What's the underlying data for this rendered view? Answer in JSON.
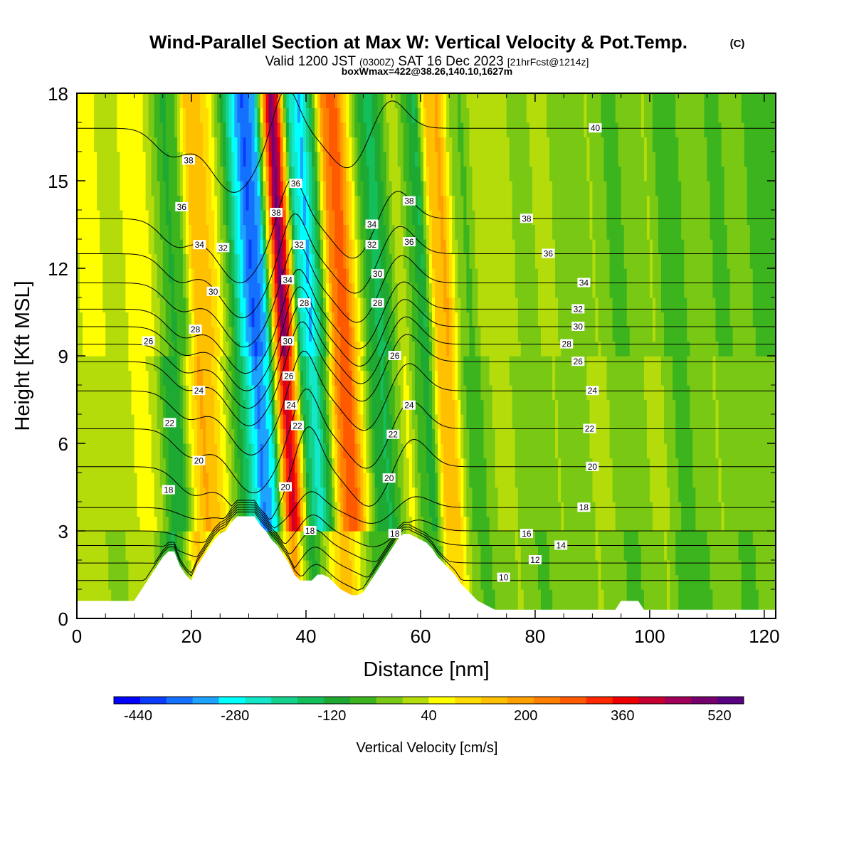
{
  "chart_data": {
    "type": "heatmap",
    "title": "Wind-Parallel Section at Max W: Vertical Velocity & Pot.Temp.",
    "title_mark": "(C)",
    "subtitle": {
      "main": "Valid 1200 JST",
      "utc": "(0300Z)",
      "date": "SAT 16 Dec 2023",
      "forecast": "[21hrFcst@1214z]"
    },
    "box_info": "boxWmax=422@38.26,140.10,1627m",
    "xlabel": "Distance [nm]",
    "ylabel": "Height [Kft MSL]",
    "xlim": [
      0,
      122
    ],
    "ylim": [
      0,
      18
    ],
    "x_ticks": [
      "0",
      "20",
      "40",
      "60",
      "80",
      "100",
      "120"
    ],
    "y_ticks": [
      "0",
      "3",
      "6",
      "9",
      "12",
      "15",
      "18"
    ],
    "colorbar": {
      "label": "Vertical Velocity [cm/s]",
      "tick_labels": [
        "-440",
        "-280",
        "-120",
        "40",
        "200",
        "360",
        "520"
      ],
      "tick_values": [
        -440,
        -280,
        -120,
        40,
        200,
        360,
        520
      ],
      "range": [
        -480,
        560
      ],
      "colors": [
        "#0000ff",
        "#0a3cff",
        "#1470ff",
        "#1ea2ff",
        "#00ffff",
        "#14e6c8",
        "#14d28c",
        "#14be5a",
        "#1eaa32",
        "#3cb41e",
        "#78c814",
        "#b4dc0a",
        "#ffff00",
        "#ffdc00",
        "#ffc000",
        "#ffa000",
        "#ff8000",
        "#ff5a00",
        "#ff2800",
        "#f00000",
        "#c80032",
        "#a0005a",
        "#78006e",
        "#5a0082"
      ]
    },
    "velocity_cross_section": {
      "x_nm": [
        0,
        2,
        4,
        6,
        8,
        10,
        12,
        14,
        16,
        18,
        20,
        22,
        24,
        26,
        28,
        30,
        32,
        34,
        36,
        37,
        38,
        40,
        42,
        44,
        46,
        48,
        50,
        52,
        54,
        56,
        58,
        60,
        62,
        64,
        66,
        68,
        70,
        72,
        74,
        76,
        78,
        80,
        82,
        84,
        86,
        88,
        90,
        92,
        94,
        96,
        98,
        100,
        102,
        104,
        106,
        108,
        110,
        112,
        114,
        116,
        118,
        120,
        122
      ],
      "w_cm_s": {
        "0-3kft": [
          0,
          10,
          0,
          -20,
          0,
          20,
          10,
          -60,
          -140,
          -20,
          150,
          60,
          40,
          -40,
          -60,
          -20,
          -120,
          -60,
          140,
          220,
          60,
          -120,
          -20,
          100,
          160,
          60,
          -40,
          -80,
          -60,
          -20,
          20,
          -60,
          -80,
          120,
          100,
          -20,
          -60,
          -40,
          -20,
          0,
          -20,
          -60,
          -40,
          -20,
          -40,
          -20,
          0,
          -20,
          -40,
          -60,
          -40,
          -20,
          0,
          -60,
          -80,
          -60,
          -40,
          -20,
          -40,
          -60,
          -40,
          -20,
          -20
        ],
        "3-9kft": [
          0,
          20,
          40,
          20,
          0,
          40,
          60,
          20,
          -100,
          -120,
          60,
          180,
          140,
          40,
          -80,
          -200,
          -360,
          -280,
          240,
          420,
          300,
          -140,
          -260,
          -60,
          240,
          300,
          80,
          -100,
          -140,
          -40,
          60,
          -80,
          -100,
          160,
          140,
          -40,
          -80,
          -20,
          20,
          0,
          -20,
          -40,
          -20,
          0,
          -40,
          -20,
          0,
          20,
          -20,
          -40,
          -20,
          0,
          20,
          -40,
          -60,
          -40,
          -20,
          0,
          -40,
          -20,
          -20,
          -20,
          -20
        ],
        "9-18kft": [
          20,
          40,
          60,
          40,
          20,
          40,
          80,
          60,
          -20,
          -100,
          -60,
          140,
          160,
          80,
          -60,
          -260,
          -400,
          -320,
          260,
          520,
          380,
          -200,
          -320,
          -120,
          220,
          300,
          100,
          -80,
          -160,
          -80,
          40,
          -60,
          -140,
          140,
          180,
          0,
          -60,
          20,
          40,
          20,
          0,
          -40,
          0,
          20,
          -20,
          -40,
          -20,
          0,
          -40,
          -60,
          -40,
          -20,
          0,
          -60,
          -80,
          -40,
          -20,
          -40,
          -60,
          -40,
          -20,
          -60,
          -60
        ]
      }
    },
    "terrain_kft": {
      "x_nm": [
        0,
        10,
        11,
        12,
        13,
        14,
        15,
        16,
        17,
        18,
        19,
        20,
        21,
        22,
        23,
        24,
        25,
        26,
        27,
        28,
        29,
        30,
        31,
        32,
        33,
        34,
        35,
        36,
        37,
        38,
        39,
        40,
        41,
        42,
        43,
        44,
        45,
        46,
        47,
        48,
        49,
        50,
        51,
        52,
        53,
        54,
        55,
        56,
        57,
        58,
        59,
        60,
        61,
        62,
        63,
        64,
        65,
        66,
        67,
        68,
        69,
        70,
        71,
        72,
        73,
        74,
        75,
        76,
        77,
        78,
        79,
        80,
        90,
        94,
        95,
        96,
        98,
        99,
        100,
        110,
        121,
        122
      ],
      "height": [
        0.6,
        0.6,
        0.9,
        1.2,
        1.5,
        1.8,
        2.1,
        2.3,
        2.3,
        1.8,
        1.5,
        1.3,
        1.8,
        2.1,
        2.4,
        2.7,
        2.9,
        3.0,
        3.3,
        3.5,
        3.5,
        3.5,
        3.5,
        3.2,
        3.0,
        2.7,
        2.5,
        2.2,
        1.9,
        1.5,
        1.3,
        1.3,
        1.3,
        1.5,
        1.5,
        1.4,
        1.2,
        1.0,
        0.9,
        0.8,
        0.8,
        0.9,
        1.2,
        1.5,
        1.8,
        2.1,
        2.4,
        2.7,
        2.9,
        2.9,
        2.8,
        2.7,
        2.6,
        2.4,
        2.1,
        1.9,
        1.7,
        1.5,
        1.2,
        1.0,
        0.8,
        0.6,
        0.5,
        0.4,
        0.3,
        0.3,
        0.3,
        0.3,
        0.3,
        0.3,
        0.3,
        0.3,
        0.3,
        0.3,
        0.6,
        0.6,
        0.6,
        0.3,
        0.3,
        0.3,
        0.3,
        0.3
      ]
    },
    "theta_contours": {
      "levels_c": [
        10,
        12,
        14,
        16,
        18,
        20,
        22,
        24,
        26,
        28,
        30,
        32,
        34,
        36,
        38,
        40
      ],
      "far_field_height_kft": [
        1.3,
        1.9,
        2.5,
        3.0,
        3.8,
        5.2,
        6.5,
        7.8,
        8.8,
        9.4,
        10.0,
        10.6,
        11.5,
        12.5,
        13.7,
        16.8
      ],
      "contour_labels": [
        {
          "text": "38",
          "x": 19.5,
          "y": 15.7
        },
        {
          "text": "36",
          "x": 18.3,
          "y": 14.1
        },
        {
          "text": "34",
          "x": 21.4,
          "y": 12.8
        },
        {
          "text": "32",
          "x": 25.5,
          "y": 12.7
        },
        {
          "text": "30",
          "x": 23.8,
          "y": 11.2
        },
        {
          "text": "28",
          "x": 20.7,
          "y": 9.9
        },
        {
          "text": "26",
          "x": 12.5,
          "y": 9.5
        },
        {
          "text": "24",
          "x": 21.3,
          "y": 7.8
        },
        {
          "text": "22",
          "x": 16.2,
          "y": 6.7
        },
        {
          "text": "20",
          "x": 21.3,
          "y": 5.4
        },
        {
          "text": "18",
          "x": 16.0,
          "y": 4.4
        },
        {
          "text": "36",
          "x": 38.2,
          "y": 14.9
        },
        {
          "text": "38",
          "x": 34.8,
          "y": 13.9
        },
        {
          "text": "32",
          "x": 38.8,
          "y": 12.8
        },
        {
          "text": "34",
          "x": 36.8,
          "y": 11.6
        },
        {
          "text": "28",
          "x": 39.7,
          "y": 10.8
        },
        {
          "text": "30",
          "x": 36.8,
          "y": 9.5
        },
        {
          "text": "26",
          "x": 37.0,
          "y": 8.3
        },
        {
          "text": "24",
          "x": 37.4,
          "y": 7.3
        },
        {
          "text": "22",
          "x": 38.5,
          "y": 6.6
        },
        {
          "text": "20",
          "x": 36.4,
          "y": 4.5
        },
        {
          "text": "18",
          "x": 40.7,
          "y": 3.0
        },
        {
          "text": "38",
          "x": 58.0,
          "y": 14.3
        },
        {
          "text": "34",
          "x": 51.5,
          "y": 13.5
        },
        {
          "text": "32",
          "x": 51.5,
          "y": 12.8
        },
        {
          "text": "36",
          "x": 58.0,
          "y": 12.9
        },
        {
          "text": "30",
          "x": 52.5,
          "y": 11.8
        },
        {
          "text": "28",
          "x": 52.5,
          "y": 10.8
        },
        {
          "text": "26",
          "x": 55.5,
          "y": 9.0
        },
        {
          "text": "24",
          "x": 58.0,
          "y": 7.3
        },
        {
          "text": "22",
          "x": 55.2,
          "y": 6.3
        },
        {
          "text": "20",
          "x": 54.5,
          "y": 4.8
        },
        {
          "text": "18",
          "x": 55.5,
          "y": 2.9
        },
        {
          "text": "40",
          "x": 90.5,
          "y": 16.8
        },
        {
          "text": "38",
          "x": 78.5,
          "y": 13.7
        },
        {
          "text": "36",
          "x": 82.3,
          "y": 12.5
        },
        {
          "text": "34",
          "x": 88.5,
          "y": 11.5
        },
        {
          "text": "32",
          "x": 87.5,
          "y": 10.6
        },
        {
          "text": "30",
          "x": 87.5,
          "y": 10.0
        },
        {
          "text": "28",
          "x": 85.5,
          "y": 9.4
        },
        {
          "text": "26",
          "x": 87.5,
          "y": 8.8
        },
        {
          "text": "24",
          "x": 90.0,
          "y": 7.8
        },
        {
          "text": "22",
          "x": 89.5,
          "y": 6.5
        },
        {
          "text": "20",
          "x": 90.0,
          "y": 5.2
        },
        {
          "text": "18",
          "x": 88.5,
          "y": 3.8
        },
        {
          "text": "16",
          "x": 78.5,
          "y": 2.9
        },
        {
          "text": "14",
          "x": 84.5,
          "y": 2.5
        },
        {
          "text": "12",
          "x": 80.0,
          "y": 2.0
        },
        {
          "text": "10",
          "x": 74.5,
          "y": 1.4
        }
      ]
    }
  }
}
